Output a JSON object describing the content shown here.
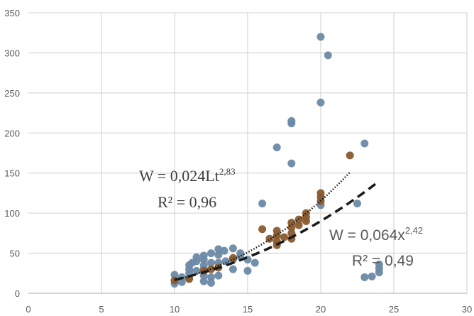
{
  "chart_data": {
    "type": "scatter",
    "title": "",
    "xlabel": "",
    "ylabel": "",
    "xlim": [
      0,
      30
    ],
    "ylim": [
      0,
      350
    ],
    "x_ticks": [
      0,
      5,
      10,
      15,
      20,
      25,
      30
    ],
    "y_ticks": [
      0,
      50,
      100,
      150,
      200,
      250,
      300,
      350
    ],
    "grid": true,
    "colors": {
      "series_blue": "#6b8aa6",
      "series_brown": "#8a5a2e",
      "grid": "#d9d9d9",
      "trend": "#1a1a1a"
    },
    "series": [
      {
        "name": "blue",
        "points": [
          [
            20,
            320
          ],
          [
            20.5,
            297
          ],
          [
            20,
            238
          ],
          [
            18,
            215
          ],
          [
            18,
            212
          ],
          [
            17,
            182
          ],
          [
            18,
            162
          ],
          [
            23,
            187
          ],
          [
            16,
            112
          ],
          [
            20,
            110
          ],
          [
            22.5,
            112
          ],
          [
            23,
            20
          ],
          [
            23.5,
            21
          ],
          [
            24,
            26
          ],
          [
            24,
            31
          ],
          [
            24,
            36
          ],
          [
            10,
            23
          ],
          [
            10,
            12
          ],
          [
            10.5,
            14
          ],
          [
            10.5,
            20
          ],
          [
            11,
            18
          ],
          [
            11,
            25
          ],
          [
            11,
            30
          ],
          [
            11,
            35
          ],
          [
            11.2,
            38
          ],
          [
            11.5,
            28
          ],
          [
            11.5,
            40
          ],
          [
            11.5,
            45
          ],
          [
            12,
            15
          ],
          [
            12,
            22
          ],
          [
            12,
            30
          ],
          [
            12,
            35
          ],
          [
            12,
            42
          ],
          [
            12,
            47
          ],
          [
            12.5,
            13
          ],
          [
            12.5,
            20
          ],
          [
            12.5,
            38
          ],
          [
            12.5,
            50
          ],
          [
            13,
            22
          ],
          [
            13,
            38
          ],
          [
            13,
            48
          ],
          [
            13,
            55
          ],
          [
            13.4,
            53
          ],
          [
            13.5,
            40
          ],
          [
            14,
            30
          ],
          [
            14,
            42
          ],
          [
            14,
            56
          ],
          [
            14.5,
            46
          ],
          [
            14.5,
            50
          ],
          [
            15,
            28
          ],
          [
            15.5,
            38
          ],
          [
            15,
            42
          ]
        ]
      },
      {
        "name": "brown",
        "points": [
          [
            16,
            80
          ],
          [
            16.5,
            68
          ],
          [
            17,
            60
          ],
          [
            17,
            65
          ],
          [
            17,
            72
          ],
          [
            17,
            78
          ],
          [
            17.5,
            70
          ],
          [
            18,
            68
          ],
          [
            18,
            75
          ],
          [
            18,
            82
          ],
          [
            18,
            88
          ],
          [
            18.5,
            85
          ],
          [
            18.5,
            92
          ],
          [
            19,
            90
          ],
          [
            19,
            95
          ],
          [
            19,
            100
          ],
          [
            20,
            115
          ],
          [
            20,
            120
          ],
          [
            20,
            125
          ],
          [
            22,
            172
          ],
          [
            10,
            16
          ],
          [
            11,
            18
          ],
          [
            12,
            28
          ],
          [
            12.5,
            30
          ],
          [
            13,
            32
          ],
          [
            14,
            44
          ]
        ]
      }
    ],
    "trendlines": [
      {
        "name": "power-fit-dotted",
        "a": 0.024,
        "b": 2.83,
        "x_range": [
          10,
          22
        ],
        "style": "dotted",
        "label": "W = 0,024Lt",
        "exponent": "2,83",
        "r2_label": "R² = 0,96"
      },
      {
        "name": "power-fit-dashed",
        "a": 0.064,
        "b": 2.42,
        "x_range": [
          10,
          24
        ],
        "style": "dashed",
        "label": "W = 0,064x",
        "exponent": "2,42",
        "r2_label": "R² = 0,49"
      }
    ]
  }
}
